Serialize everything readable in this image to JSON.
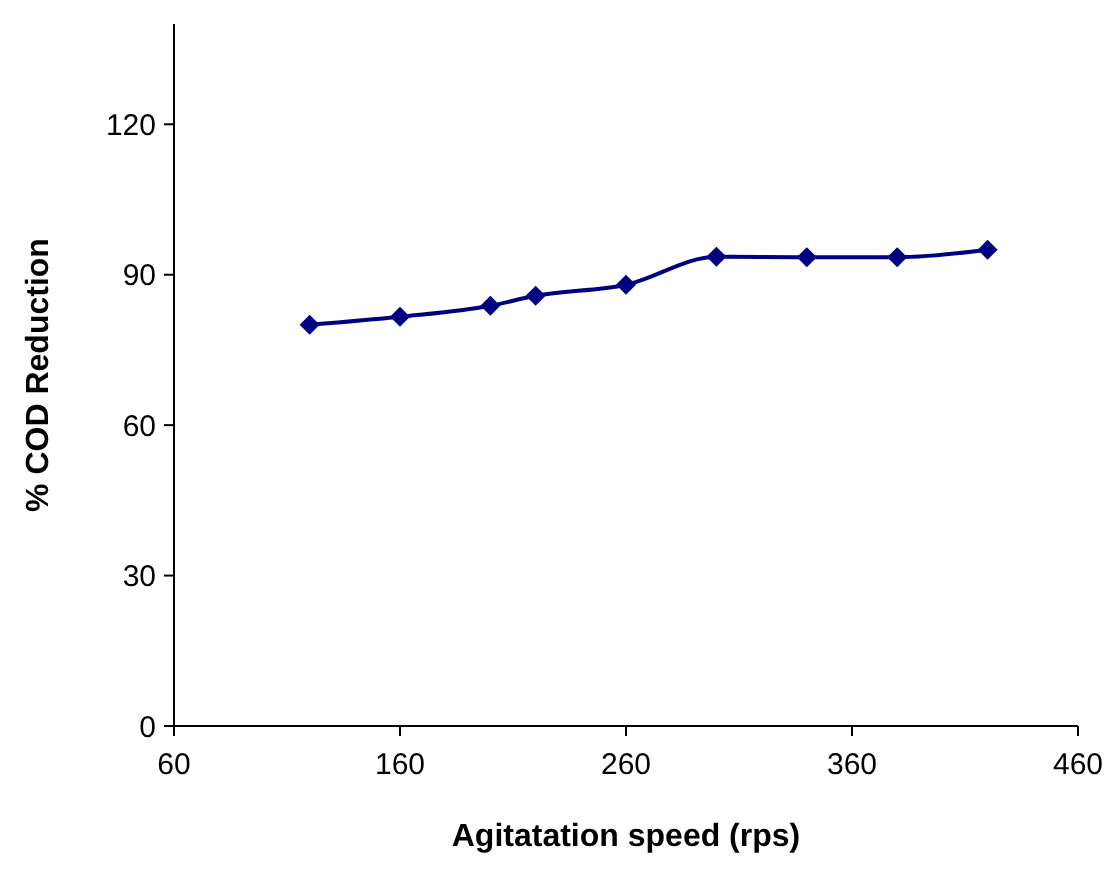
{
  "chart_data": {
    "type": "line",
    "xlabel": "Agitatation speed (rps)",
    "ylabel": "% COD Reduction",
    "x": [
      120,
      160,
      200,
      220,
      260,
      300,
      340,
      380,
      420
    ],
    "series": [
      {
        "color": "#000080",
        "values": [
          80,
          81.6,
          83.8,
          85.8,
          88,
          93.6,
          93.5,
          93.5,
          95
        ]
      }
    ],
    "xlim": [
      60,
      460
    ],
    "xticks": [
      60,
      160,
      260,
      360,
      460
    ],
    "ylim": [
      0,
      140
    ],
    "yticks": [
      0,
      30,
      60,
      90,
      120
    ],
    "marker": "diamond",
    "line_style": "solid"
  }
}
